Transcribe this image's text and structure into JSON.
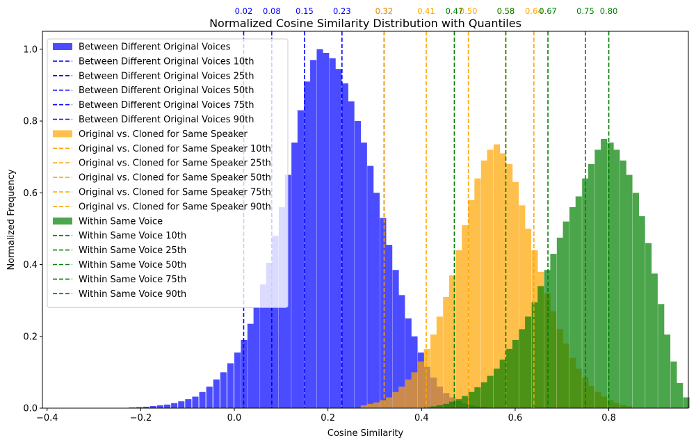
{
  "chart_data": {
    "type": "histogram",
    "title": "Normalized Cosine Similarity Distribution with Quantiles",
    "xlabel": "Cosine Similarity",
    "ylabel": "Normalized Frequency",
    "xlim": [
      -0.41,
      0.97
    ],
    "ylim": [
      0,
      1.05
    ],
    "xticks": [
      -0.4,
      -0.2,
      0.0,
      0.2,
      0.4,
      0.6,
      0.8
    ],
    "xtick_labels": [
      "−0.4",
      "−0.2",
      "0.0",
      "0.2",
      "0.4",
      "0.6",
      "0.8"
    ],
    "yticks": [
      0.0,
      0.2,
      0.4,
      0.6,
      0.8,
      1.0
    ],
    "ytick_labels": [
      "0.0",
      "0.2",
      "0.4",
      "0.6",
      "0.8",
      "1.0"
    ],
    "grid": false,
    "legend_position": "upper-left",
    "series": [
      {
        "name": "Between Different Original Voices",
        "color": "#0000ff",
        "alpha": 0.7,
        "bin_width": 0.0135,
        "bins": [
          [
            -0.225,
            0.002
          ],
          [
            -0.21,
            0.003
          ],
          [
            -0.195,
            0.004
          ],
          [
            -0.18,
            0.006
          ],
          [
            -0.165,
            0.008
          ],
          [
            -0.15,
            0.01
          ],
          [
            -0.135,
            0.014
          ],
          [
            -0.12,
            0.019
          ],
          [
            -0.105,
            0.025
          ],
          [
            -0.09,
            0.032
          ],
          [
            -0.075,
            0.045
          ],
          [
            -0.06,
            0.06
          ],
          [
            -0.045,
            0.08
          ],
          [
            -0.03,
            0.1
          ],
          [
            -0.015,
            0.125
          ],
          [
            0.0,
            0.155
          ],
          [
            0.014,
            0.19
          ],
          [
            0.028,
            0.235
          ],
          [
            0.041,
            0.28
          ],
          [
            0.055,
            0.345
          ],
          [
            0.068,
            0.405
          ],
          [
            0.081,
            0.48
          ],
          [
            0.095,
            0.56
          ],
          [
            0.108,
            0.65
          ],
          [
            0.122,
            0.74
          ],
          [
            0.135,
            0.83
          ],
          [
            0.149,
            0.91
          ],
          [
            0.162,
            0.97
          ],
          [
            0.176,
            1.0
          ],
          [
            0.189,
            0.99
          ],
          [
            0.203,
            0.975
          ],
          [
            0.216,
            0.945
          ],
          [
            0.23,
            0.905
          ],
          [
            0.243,
            0.855
          ],
          [
            0.257,
            0.8
          ],
          [
            0.27,
            0.74
          ],
          [
            0.284,
            0.675
          ],
          [
            0.297,
            0.6
          ],
          [
            0.311,
            0.53
          ],
          [
            0.324,
            0.455
          ],
          [
            0.338,
            0.385
          ],
          [
            0.351,
            0.315
          ],
          [
            0.365,
            0.25
          ],
          [
            0.378,
            0.2
          ],
          [
            0.392,
            0.155
          ],
          [
            0.405,
            0.115
          ],
          [
            0.419,
            0.085
          ],
          [
            0.432,
            0.06
          ],
          [
            0.446,
            0.042
          ],
          [
            0.459,
            0.03
          ],
          [
            0.473,
            0.02
          ],
          [
            0.486,
            0.013
          ],
          [
            0.5,
            0.008
          ],
          [
            0.513,
            0.005
          ],
          [
            0.527,
            0.003
          ]
        ],
        "quantiles": [
          {
            "label": "Between Different Original Voices 10th",
            "value": 0.02,
            "text": "0.02"
          },
          {
            "label": "Between Different Original Voices 25th",
            "value": 0.08,
            "text": "0.08"
          },
          {
            "label": "Between Different Original Voices 50th",
            "value": 0.15,
            "text": "0.15"
          },
          {
            "label": "Between Different Original Voices 75th",
            "value": 0.23,
            "text": "0.23"
          },
          {
            "label": "Between Different Original Voices 90th",
            "value": 0.32,
            "text": "0.32"
          }
        ]
      },
      {
        "name": "Original vs. Cloned for Same Speaker",
        "color": "#ffa500",
        "alpha": 0.7,
        "bin_width": 0.0135,
        "bins": [
          [
            0.27,
            0.008
          ],
          [
            0.284,
            0.012
          ],
          [
            0.297,
            0.016
          ],
          [
            0.311,
            0.022
          ],
          [
            0.324,
            0.03
          ],
          [
            0.338,
            0.045
          ],
          [
            0.351,
            0.06
          ],
          [
            0.365,
            0.08
          ],
          [
            0.378,
            0.1
          ],
          [
            0.392,
            0.13
          ],
          [
            0.405,
            0.165
          ],
          [
            0.419,
            0.205
          ],
          [
            0.432,
            0.255
          ],
          [
            0.446,
            0.31
          ],
          [
            0.459,
            0.37
          ],
          [
            0.473,
            0.44
          ],
          [
            0.486,
            0.51
          ],
          [
            0.5,
            0.58
          ],
          [
            0.513,
            0.64
          ],
          [
            0.527,
            0.69
          ],
          [
            0.54,
            0.72
          ],
          [
            0.554,
            0.735
          ],
          [
            0.567,
            0.71
          ],
          [
            0.581,
            0.68
          ],
          [
            0.594,
            0.63
          ],
          [
            0.608,
            0.565
          ],
          [
            0.621,
            0.5
          ],
          [
            0.635,
            0.44
          ],
          [
            0.648,
            0.38
          ],
          [
            0.662,
            0.32
          ],
          [
            0.675,
            0.27
          ],
          [
            0.689,
            0.22
          ],
          [
            0.702,
            0.18
          ],
          [
            0.716,
            0.14
          ],
          [
            0.729,
            0.11
          ],
          [
            0.743,
            0.085
          ],
          [
            0.756,
            0.062
          ],
          [
            0.77,
            0.045
          ],
          [
            0.783,
            0.032
          ],
          [
            0.797,
            0.022
          ],
          [
            0.81,
            0.014
          ],
          [
            0.824,
            0.009
          ],
          [
            0.837,
            0.005
          ]
        ],
        "quantiles": [
          {
            "label": "Original vs. Cloned for Same Speaker 10th",
            "value": 0.32,
            "text": "0.32"
          },
          {
            "label": "Original vs. Cloned for Same Speaker 25th",
            "value": 0.41,
            "text": "0.41"
          },
          {
            "label": "Original vs. Cloned for Same Speaker 50th",
            "value": 0.5,
            "text": "0.50"
          },
          {
            "label": "Original vs. Cloned for Same Speaker 75th",
            "value": 0.58,
            "text": "0.58"
          },
          {
            "label": "Original vs. Cloned for Same Speaker 90th",
            "value": 0.64,
            "text": "0.64"
          }
        ]
      },
      {
        "name": "Within Same Voice",
        "color": "#008000",
        "alpha": 0.7,
        "bin_width": 0.0135,
        "bins": [
          [
            0.405,
            0.003
          ],
          [
            0.419,
            0.005
          ],
          [
            0.432,
            0.008
          ],
          [
            0.446,
            0.012
          ],
          [
            0.459,
            0.018
          ],
          [
            0.473,
            0.025
          ],
          [
            0.486,
            0.034
          ],
          [
            0.5,
            0.045
          ],
          [
            0.513,
            0.058
          ],
          [
            0.527,
            0.072
          ],
          [
            0.54,
            0.09
          ],
          [
            0.554,
            0.11
          ],
          [
            0.567,
            0.135
          ],
          [
            0.581,
            0.165
          ],
          [
            0.594,
            0.19
          ],
          [
            0.608,
            0.22
          ],
          [
            0.621,
            0.255
          ],
          [
            0.635,
            0.295
          ],
          [
            0.648,
            0.34
          ],
          [
            0.662,
            0.385
          ],
          [
            0.675,
            0.43
          ],
          [
            0.689,
            0.475
          ],
          [
            0.702,
            0.52
          ],
          [
            0.716,
            0.56
          ],
          [
            0.729,
            0.59
          ],
          [
            0.743,
            0.64
          ],
          [
            0.756,
            0.68
          ],
          [
            0.77,
            0.72
          ],
          [
            0.783,
            0.75
          ],
          [
            0.797,
            0.74
          ],
          [
            0.81,
            0.72
          ],
          [
            0.824,
            0.69
          ],
          [
            0.837,
            0.65
          ],
          [
            0.851,
            0.6
          ],
          [
            0.864,
            0.535
          ],
          [
            0.878,
            0.46
          ],
          [
            0.891,
            0.375
          ],
          [
            0.905,
            0.29
          ],
          [
            0.918,
            0.205
          ],
          [
            0.932,
            0.13
          ],
          [
            0.945,
            0.07
          ],
          [
            0.959,
            0.03
          ]
        ],
        "quantiles": [
          {
            "label": "Within Same Voice 10th",
            "value": 0.47,
            "text": "0.47"
          },
          {
            "label": "Within Same Voice 25th",
            "value": 0.58,
            "text": "0.58"
          },
          {
            "label": "Within Same Voice 50th",
            "value": 0.67,
            "text": "0.67"
          },
          {
            "label": "Within Same Voice 75th",
            "value": 0.75,
            "text": "0.75"
          },
          {
            "label": "Within Same Voice 90th",
            "value": 0.8,
            "text": "0.80"
          }
        ]
      }
    ]
  }
}
